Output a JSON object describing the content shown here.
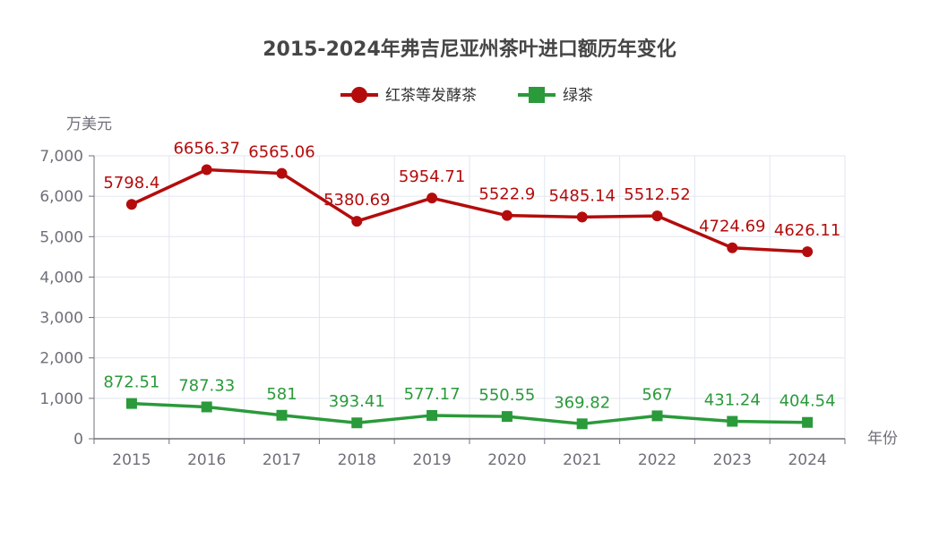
{
  "chart_data": {
    "type": "line",
    "title": "2015-2024年弗吉尼亚州茶叶进口额历年变化",
    "xlabel": "年份",
    "ylabel": "万美元",
    "categories": [
      "2015",
      "2016",
      "2017",
      "2018",
      "2019",
      "2020",
      "2021",
      "2022",
      "2023",
      "2024"
    ],
    "ylim": [
      0,
      7000
    ],
    "yticks": [
      "0",
      "1,000",
      "2,000",
      "3,000",
      "4,000",
      "5,000",
      "6,000",
      "7,000"
    ],
    "grid": true,
    "legend_position": "top-center",
    "series": [
      {
        "name": "红茶等发酵茶",
        "color": "#b40c0c",
        "marker": "circle",
        "values": [
          5798.4,
          6656.37,
          6565.06,
          5380.69,
          5954.71,
          5522.9,
          5485.14,
          5512.52,
          4724.69,
          4626.11
        ],
        "labels": [
          "5798.4",
          "6656.37",
          "6565.06",
          "5380.69",
          "5954.71",
          "5522.9",
          "5485.14",
          "5512.52",
          "4724.69",
          "4626.11"
        ]
      },
      {
        "name": "绿茶",
        "color": "#2a9a3a",
        "marker": "square",
        "values": [
          872.51,
          787.33,
          581,
          393.41,
          577.17,
          550.55,
          369.82,
          567,
          431.24,
          404.54
        ],
        "labels": [
          "872.51",
          "787.33",
          "581",
          "393.41",
          "577.17",
          "550.55",
          "369.82",
          "567",
          "431.24",
          "404.54"
        ]
      }
    ]
  }
}
